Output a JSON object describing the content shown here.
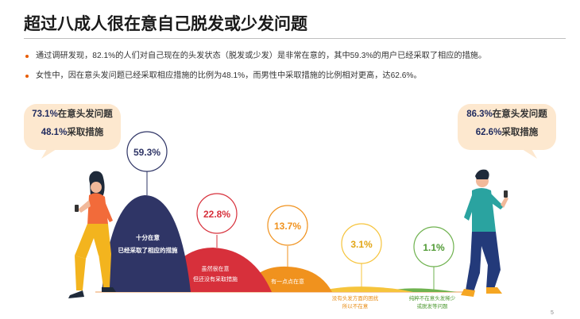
{
  "title": "超过八成人很在意自己脱发或少发问题",
  "bullets": [
    "通过调研发现，82.1%的人们对自己现在的头发状态（脱发或少发）是非常在意的，其中59.3%的用户已经采取了相应的措施。",
    "女性中，因在意头发问题已经采取相应措施的比例为48.1%，而男性中采取措施的比例相对更高，达62.6%。"
  ],
  "callout_female": {
    "pct1": "73.1%",
    "text1": "在意头发问题",
    "pct2": "48.1%",
    "text2": "采取措施"
  },
  "callout_male": {
    "pct1": "86.3%",
    "text1": "在意头发问题",
    "pct2": "62.6%",
    "text2": "采取措施"
  },
  "segments": [
    {
      "value": "59.3%",
      "label1": "十分在意",
      "label2": "已经采取了相应的措施",
      "color": "#2f3566",
      "ring": "#2f3566"
    },
    {
      "value": "22.8%",
      "label1": "虽然很在意",
      "label2": "但还没有采取措施",
      "color": "#d7303b",
      "ring": "#d7303b"
    },
    {
      "value": "13.7%",
      "label1": "有一点点在意",
      "label2": "",
      "color": "#f0921e",
      "ring": "#f0921e"
    },
    {
      "value": "3.1%",
      "label1": "没有头发方面的困扰",
      "label2": "所以不在意",
      "color": "#f6c43c",
      "ring": "#f6c43c"
    },
    {
      "value": "1.1%",
      "label1": "纯粹不在意头发稀少",
      "label2": "或脱发等问题",
      "color": "#6fb24f",
      "ring": "#6fb24f"
    }
  ],
  "page_number": "5",
  "colors": {
    "accent": "#e85d04",
    "navy": "#1f2a5e",
    "callout_bg": "#fde8cf"
  }
}
